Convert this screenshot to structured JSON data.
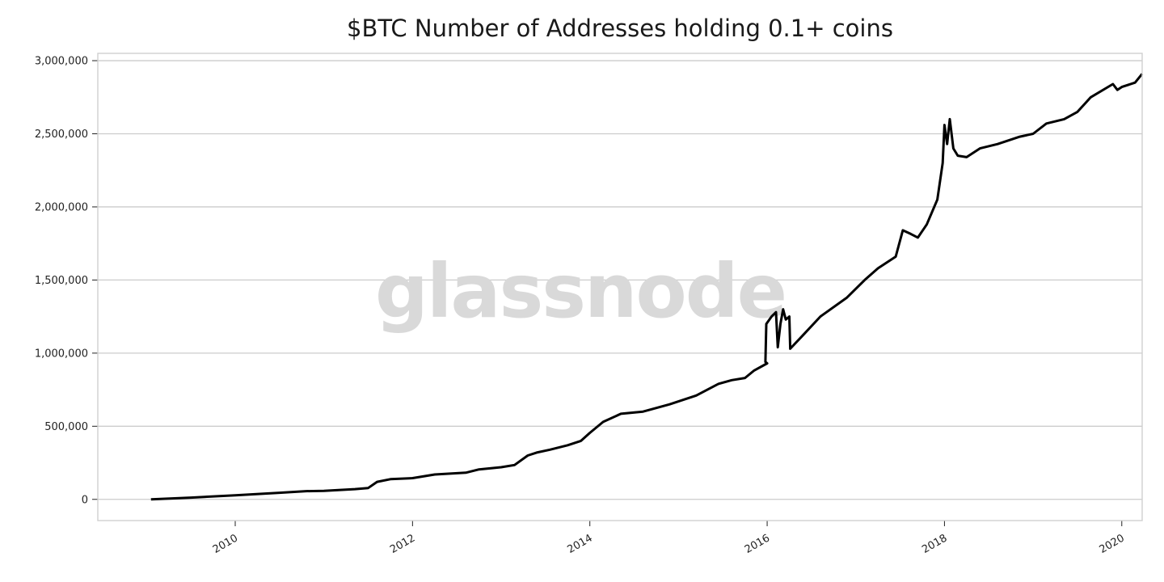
{
  "chart_data": {
    "type": "line",
    "title": "$BTC Number of Addresses holding 0.1+ coins",
    "xlabel": "",
    "ylabel": "",
    "xlim": [
      2008.45,
      2020.23
    ],
    "ylim": [
      -145000,
      3050000
    ],
    "grid": "horizontal",
    "y_ticks": [
      0,
      500000,
      1000000,
      1500000,
      2000000,
      2500000,
      3000000
    ],
    "y_tick_labels": [
      "0",
      "500,000",
      "1,000,000",
      "1,500,000",
      "2,000,000",
      "2,500,000",
      "3,000,000"
    ],
    "x_ticks": [
      2010,
      2012,
      2014,
      2016,
      2018,
      2020
    ],
    "x_tick_labels": [
      "2010",
      "2012",
      "2014",
      "2016",
      "2018",
      "2020"
    ],
    "watermark": "glassnode",
    "series": [
      {
        "color": "#000000",
        "points": [
          [
            2009.05,
            0
          ],
          [
            2009.5,
            12000
          ],
          [
            2010.0,
            28000
          ],
          [
            2010.5,
            45000
          ],
          [
            2010.8,
            56000
          ],
          [
            2011.0,
            58000
          ],
          [
            2011.35,
            70000
          ],
          [
            2011.5,
            78000
          ],
          [
            2011.6,
            120000
          ],
          [
            2011.75,
            138000
          ],
          [
            2012.0,
            145000
          ],
          [
            2012.25,
            170000
          ],
          [
            2012.6,
            182000
          ],
          [
            2012.75,
            205000
          ],
          [
            2013.0,
            220000
          ],
          [
            2013.15,
            235000
          ],
          [
            2013.3,
            300000
          ],
          [
            2013.4,
            320000
          ],
          [
            2013.55,
            340000
          ],
          [
            2013.75,
            370000
          ],
          [
            2013.9,
            400000
          ],
          [
            2014.0,
            455000
          ],
          [
            2014.15,
            530000
          ],
          [
            2014.35,
            585000
          ],
          [
            2014.6,
            600000
          ],
          [
            2014.9,
            650000
          ],
          [
            2015.2,
            710000
          ],
          [
            2015.45,
            790000
          ],
          [
            2015.6,
            815000
          ],
          [
            2015.75,
            830000
          ],
          [
            2015.85,
            880000
          ],
          [
            2016.0,
            930000
          ],
          [
            2015.98,
            940000
          ],
          [
            2015.99,
            1200000
          ],
          [
            2016.05,
            1250000
          ],
          [
            2016.1,
            1280000
          ],
          [
            2016.12,
            1040000
          ],
          [
            2016.15,
            1200000
          ],
          [
            2016.18,
            1300000
          ],
          [
            2016.21,
            1230000
          ],
          [
            2016.25,
            1250000
          ],
          [
            2016.26,
            1030000
          ],
          [
            2016.4,
            1120000
          ],
          [
            2016.6,
            1250000
          ],
          [
            2016.9,
            1380000
          ],
          [
            2017.1,
            1500000
          ],
          [
            2017.25,
            1580000
          ],
          [
            2017.45,
            1660000
          ],
          [
            2017.53,
            1840000
          ],
          [
            2017.62,
            1815000
          ],
          [
            2017.7,
            1790000
          ],
          [
            2017.8,
            1880000
          ],
          [
            2017.92,
            2050000
          ],
          [
            2017.98,
            2300000
          ],
          [
            2018.0,
            2560000
          ],
          [
            2018.03,
            2430000
          ],
          [
            2018.06,
            2600000
          ],
          [
            2018.1,
            2400000
          ],
          [
            2018.15,
            2350000
          ],
          [
            2018.25,
            2340000
          ],
          [
            2018.4,
            2400000
          ],
          [
            2018.6,
            2430000
          ],
          [
            2018.85,
            2480000
          ],
          [
            2019.0,
            2500000
          ],
          [
            2019.15,
            2570000
          ],
          [
            2019.35,
            2600000
          ],
          [
            2019.5,
            2650000
          ],
          [
            2019.65,
            2750000
          ],
          [
            2019.9,
            2840000
          ],
          [
            2019.95,
            2800000
          ],
          [
            2020.0,
            2820000
          ],
          [
            2020.15,
            2850000
          ],
          [
            2020.23,
            2910000
          ]
        ]
      }
    ]
  }
}
